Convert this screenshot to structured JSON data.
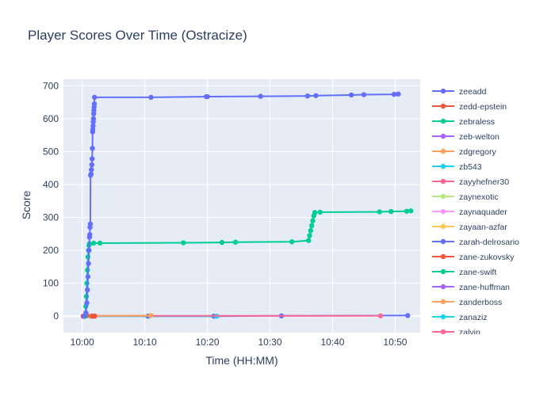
{
  "chart_data": {
    "type": "line",
    "title": "Player Scores Over Time (Ostracize)",
    "xlabel": "Time (HH:MM)",
    "ylabel": "Score",
    "xlim": [
      "09:57:00",
      "10:54:00"
    ],
    "ylim": [
      -50,
      720
    ],
    "x_ticks": [
      "10:00",
      "10:10",
      "10:20",
      "10:30",
      "10:40",
      "10:50"
    ],
    "y_ticks": [
      0,
      100,
      200,
      300,
      400,
      500,
      600,
      700
    ],
    "grid": true,
    "legend_position": "right",
    "series": [
      {
        "name": "zeeadd",
        "color": "#636efa",
        "points": [
          [
            "10:00:20",
            0
          ],
          [
            "10:00:35",
            10
          ],
          [
            "10:00:45",
            40
          ],
          [
            "10:00:50",
            80
          ],
          [
            "10:00:55",
            120
          ],
          [
            "10:01:00",
            160
          ],
          [
            "10:01:05",
            200
          ],
          [
            "10:01:10",
            240
          ],
          [
            "10:01:13",
            248
          ],
          [
            "10:01:15",
            270
          ],
          [
            "10:01:18",
            280
          ],
          [
            "10:01:20",
            428
          ],
          [
            "10:01:25",
            432
          ],
          [
            "10:01:28",
            445
          ],
          [
            "10:01:32",
            460
          ],
          [
            "10:01:35",
            478
          ],
          [
            "10:01:38",
            510
          ],
          [
            "10:01:40",
            560
          ],
          [
            "10:01:42",
            568
          ],
          [
            "10:01:44",
            578
          ],
          [
            "10:01:46",
            590
          ],
          [
            "10:01:48",
            600
          ],
          [
            "10:01:50",
            615
          ],
          [
            "10:01:52",
            625
          ],
          [
            "10:01:54",
            635
          ],
          [
            "10:01:56",
            645
          ],
          [
            "10:01:58",
            665
          ],
          [
            "10:11:00",
            665
          ],
          [
            "10:19:50",
            667
          ],
          [
            "10:20:00",
            667
          ],
          [
            "10:28:30",
            668
          ],
          [
            "10:36:00",
            669
          ],
          [
            "10:37:20",
            670
          ],
          [
            "10:43:00",
            672
          ],
          [
            "10:45:00",
            673
          ],
          [
            "10:49:50",
            674
          ],
          [
            "10:50:30",
            675
          ]
        ]
      },
      {
        "name": "zebraless",
        "color": "#00cc96",
        "points": [
          [
            "10:00:30",
            0
          ],
          [
            "10:00:35",
            30
          ],
          [
            "10:00:40",
            60
          ],
          [
            "10:00:45",
            100
          ],
          [
            "10:00:50",
            140
          ],
          [
            "10:00:55",
            180
          ],
          [
            "10:01:00",
            200
          ],
          [
            "10:01:05",
            215
          ],
          [
            "10:01:10",
            220
          ],
          [
            "10:01:50",
            222
          ],
          [
            "10:02:50",
            222
          ],
          [
            "10:16:10",
            223
          ],
          [
            "10:22:20",
            224
          ],
          [
            "10:24:30",
            225
          ],
          [
            "10:33:30",
            226
          ],
          [
            "10:36:10",
            230
          ],
          [
            "10:36:20",
            245
          ],
          [
            "10:36:30",
            260
          ],
          [
            "10:36:40",
            275
          ],
          [
            "10:36:50",
            290
          ],
          [
            "10:37:00",
            305
          ],
          [
            "10:37:10",
            315
          ],
          [
            "10:38:00",
            316
          ],
          [
            "10:47:30",
            317
          ],
          [
            "10:49:20",
            318
          ],
          [
            "10:51:50",
            319
          ],
          [
            "10:52:30",
            320
          ]
        ]
      },
      {
        "name": "zarah-delrosario",
        "color": "#636efa",
        "points": [
          [
            "10:00:20",
            0
          ],
          [
            "10:01:30",
            0
          ],
          [
            "10:10:30",
            0
          ],
          [
            "10:21:00",
            0
          ],
          [
            "10:31:50",
            1
          ],
          [
            "10:52:00",
            2
          ]
        ]
      },
      {
        "name": "zdgregory",
        "color": "#ffa15a",
        "points": [
          [
            "10:00:10",
            0
          ],
          [
            "10:01:00",
            1
          ],
          [
            "10:02:00",
            1
          ],
          [
            "10:11:00",
            2
          ]
        ]
      },
      {
        "name": "zb543",
        "color": "#19d3f3",
        "points": [
          [
            "10:00:30",
            0
          ],
          [
            "10:21:30",
            0
          ]
        ]
      },
      {
        "name": "zayyhefner30",
        "color": "#ff6692",
        "points": [
          [
            "10:00:20",
            0
          ],
          [
            "10:01:00",
            1
          ],
          [
            "10:47:40",
            1
          ]
        ]
      },
      {
        "name": "zedd-epstein",
        "color": "#ef553b",
        "points": [
          [
            "10:00:10",
            0
          ],
          [
            "10:00:40",
            2
          ],
          [
            "10:01:40",
            0
          ],
          [
            "10:02:00",
            0
          ]
        ]
      }
    ],
    "legend": [
      {
        "name": "zeeadd",
        "color": "#636efa"
      },
      {
        "name": "zedd-epstein",
        "color": "#ef553b"
      },
      {
        "name": "zebraless",
        "color": "#00cc96"
      },
      {
        "name": "zeb-welton",
        "color": "#ab63fa"
      },
      {
        "name": "zdgregory",
        "color": "#ffa15a"
      },
      {
        "name": "zb543",
        "color": "#19d3f3"
      },
      {
        "name": "zayyhefner30",
        "color": "#ff6692"
      },
      {
        "name": "zaynexotic",
        "color": "#b6e880"
      },
      {
        "name": "zaynaquader",
        "color": "#ff97ff"
      },
      {
        "name": "zayaan-azfar",
        "color": "#fecb52"
      },
      {
        "name": "zarah-delrosario",
        "color": "#636efa"
      },
      {
        "name": "zane-zukovsky",
        "color": "#ef553b"
      },
      {
        "name": "zane-swift",
        "color": "#00cc96"
      },
      {
        "name": "zane-huffman",
        "color": "#ab63fa"
      },
      {
        "name": "zanderboss",
        "color": "#ffa15a"
      },
      {
        "name": "zanaziz",
        "color": "#19d3f3"
      },
      {
        "name": "zalvin",
        "color": "#ff6692"
      }
    ]
  }
}
